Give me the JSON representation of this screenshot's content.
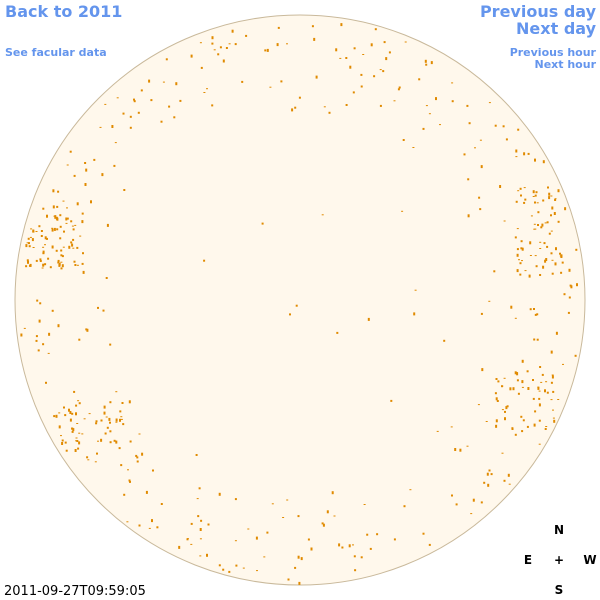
{
  "header": {
    "back_link": "Back to 2011",
    "data_link": "See facular data",
    "prev_day": "Previous day",
    "next_day": "Next day",
    "prev_hour": "Previous hour",
    "next_hour": "Next hour"
  },
  "timestamp": "2011-09-27T09:59:05",
  "compass": {
    "north": "N",
    "east": "E",
    "center": "+",
    "west": "W",
    "south": "S"
  }
}
